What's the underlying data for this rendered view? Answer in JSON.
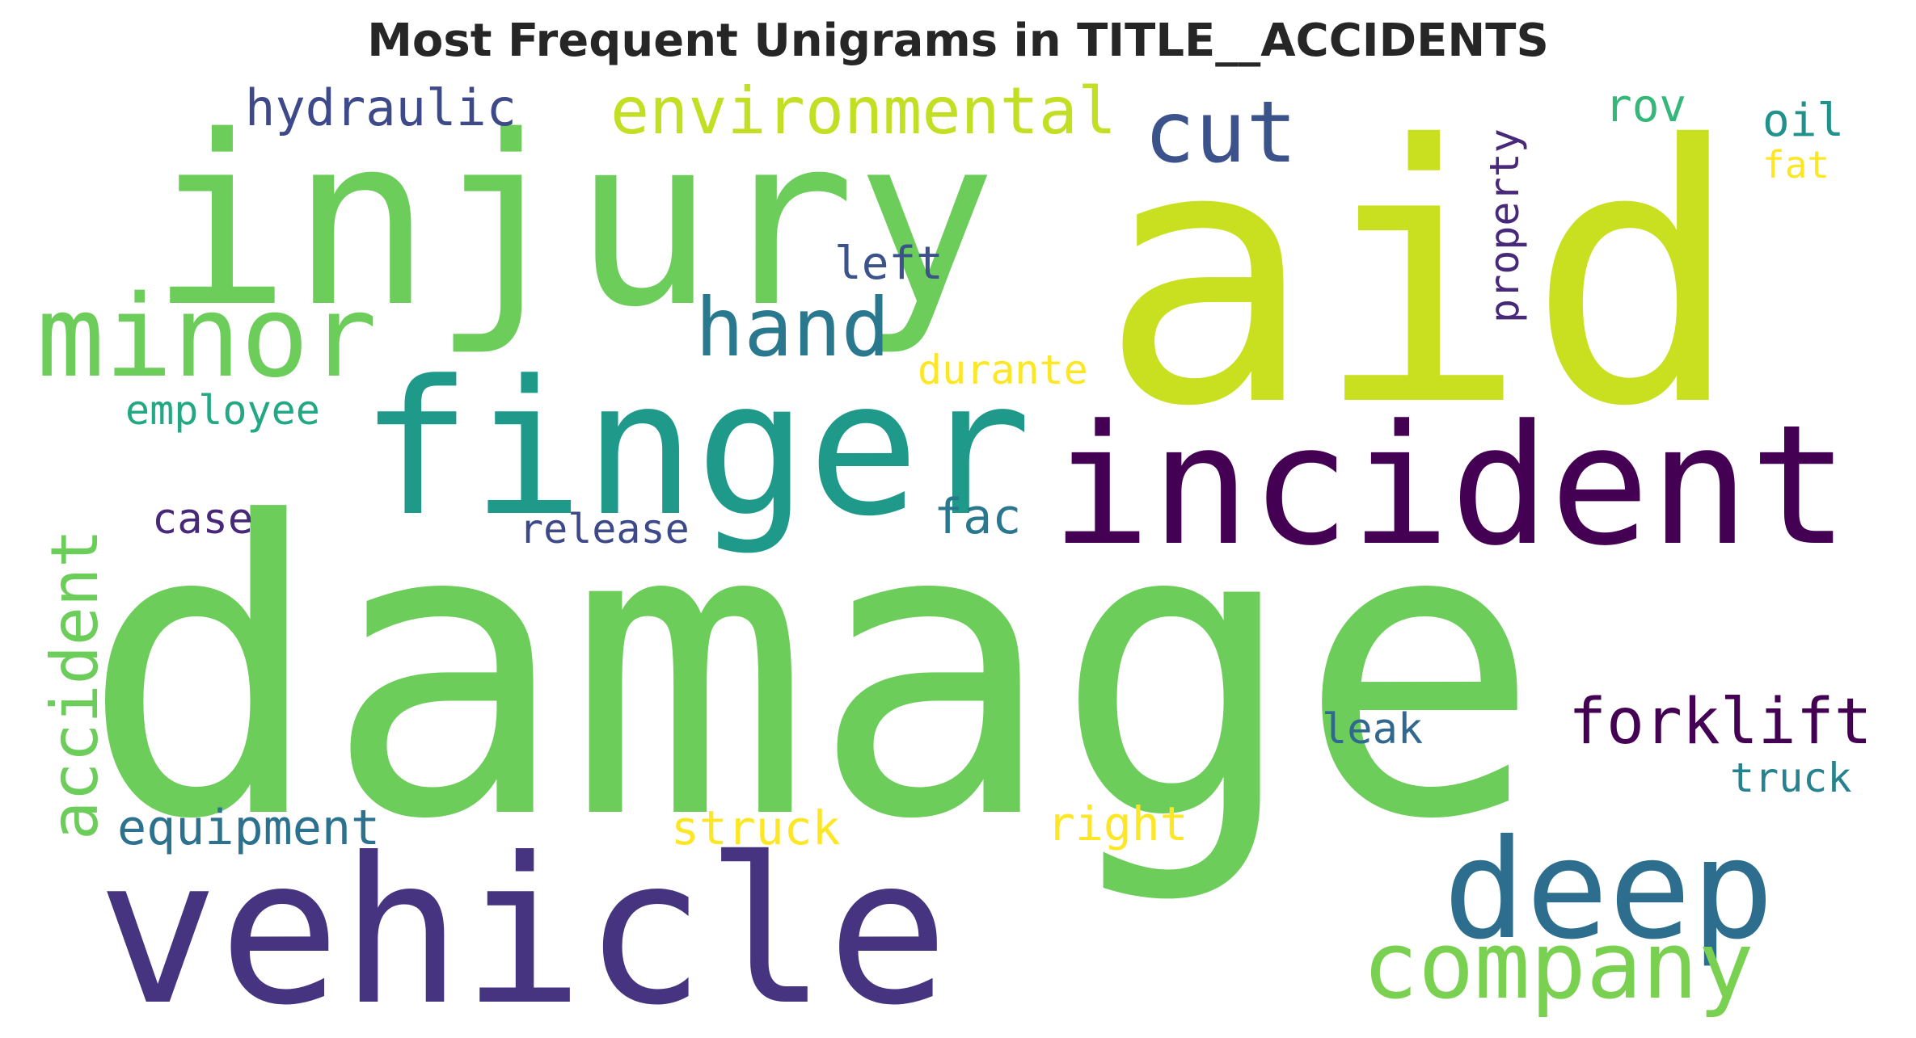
{
  "chart_data": {
    "type": "wordcloud",
    "title": "Most Frequent Unigrams in TITLE__ACCIDENTS",
    "words": [
      {
        "text": "damage",
        "orientation": "horizontal",
        "color": "#6ccd5a"
      },
      {
        "text": "aid",
        "orientation": "horizontal",
        "color": "#c8e020"
      },
      {
        "text": "injury",
        "orientation": "horizontal",
        "color": "#6ccd5a"
      },
      {
        "text": "vehicle",
        "orientation": "horizontal",
        "color": "#463480"
      },
      {
        "text": "finger",
        "orientation": "horizontal",
        "color": "#1f9a8a"
      },
      {
        "text": "incident",
        "orientation": "horizontal",
        "color": "#440154"
      },
      {
        "text": "deep",
        "orientation": "horizontal",
        "color": "#2d6e8e"
      },
      {
        "text": "minor",
        "orientation": "horizontal",
        "color": "#6ccd5a"
      },
      {
        "text": "company",
        "orientation": "horizontal",
        "color": "#7ad151"
      },
      {
        "text": "cut",
        "orientation": "horizontal",
        "color": "#3b528b"
      },
      {
        "text": "hand",
        "orientation": "horizontal",
        "color": "#2a788e"
      },
      {
        "text": "environmental",
        "orientation": "horizontal",
        "color": "#c2df23"
      },
      {
        "text": "accident",
        "orientation": "vertical",
        "color": "#6ccd5a"
      },
      {
        "text": "forklift",
        "orientation": "horizontal",
        "color": "#440154"
      },
      {
        "text": "hydraulic",
        "orientation": "horizontal",
        "color": "#3e4989"
      },
      {
        "text": "equipment",
        "orientation": "horizontal",
        "color": "#2c728e"
      },
      {
        "text": "employee",
        "orientation": "horizontal",
        "color": "#22a884"
      },
      {
        "text": "struck",
        "orientation": "horizontal",
        "color": "#fde725"
      },
      {
        "text": "right",
        "orientation": "horizontal",
        "color": "#fde725"
      },
      {
        "text": "property",
        "orientation": "vertical",
        "color": "#482878"
      },
      {
        "text": "durante",
        "orientation": "horizontal",
        "color": "#fde725"
      },
      {
        "text": "release",
        "orientation": "horizontal",
        "color": "#3e4989"
      },
      {
        "text": "left",
        "orientation": "horizontal",
        "color": "#3b528b"
      },
      {
        "text": "fac",
        "orientation": "horizontal",
        "color": "#2a788e"
      },
      {
        "text": "case",
        "orientation": "horizontal",
        "color": "#482878"
      },
      {
        "text": "leak",
        "orientation": "horizontal",
        "color": "#31688e"
      },
      {
        "text": "truck",
        "orientation": "horizontal",
        "color": "#26828e"
      },
      {
        "text": "rov",
        "orientation": "horizontal",
        "color": "#35b779"
      },
      {
        "text": "oil",
        "orientation": "horizontal",
        "color": "#21918c"
      },
      {
        "text": "fat",
        "orientation": "horizontal",
        "color": "#fde725"
      }
    ]
  }
}
